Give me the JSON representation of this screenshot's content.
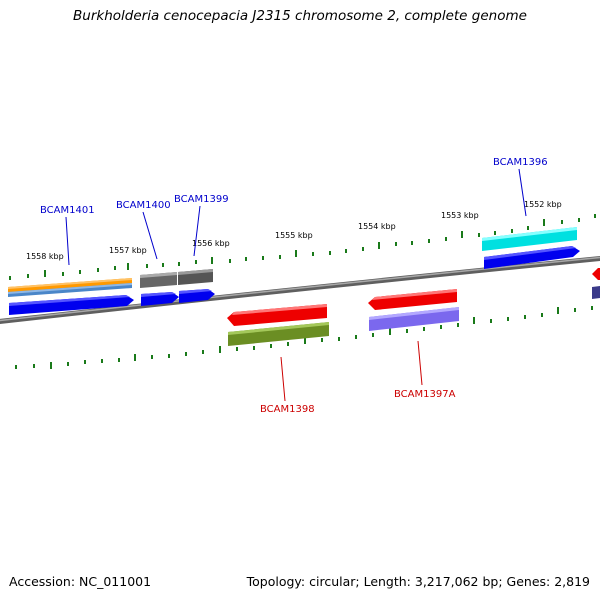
{
  "title": "Burkholderia cenocepacia J2315 chromosome 2, complete genome",
  "footer": {
    "accession": "Accession: NC_011001",
    "summary": "Topology: circular; Length: 3,217,062 bp; Genes: 2,819"
  },
  "ticks": {
    "labels": [
      "1558 kbp",
      "1557 kbp",
      "1556 kbp",
      "1555 kbp",
      "1554 kbp",
      "1553 kbp",
      "1552 kbp"
    ],
    "color": "#1a7a1a"
  },
  "genes": {
    "forward": [
      {
        "name": "BCAM1401",
        "color": "#0000cc"
      },
      {
        "name": "BCAM1400",
        "color": "#0000cc"
      },
      {
        "name": "BCAM1399",
        "color": "#0000cc"
      },
      {
        "name": "BCAM1396",
        "color": "#0000cc"
      }
    ],
    "reverse": [
      {
        "name": "BCAM1398",
        "color": "#cc0000"
      },
      {
        "name": "BCAM1397A",
        "color": "#cc0000"
      }
    ]
  },
  "colors": {
    "backbone": "#8a8a8a",
    "cds_forward": "#0000ee",
    "cds_reverse": "#ee0000",
    "orange": "#ff9900",
    "steelblue": "#4a86c8",
    "gray": "#666666",
    "cyan": "#00e0e0",
    "olive": "#6b8e23",
    "slateblue": "#7b68ee",
    "navy": "#3a3a8a"
  }
}
